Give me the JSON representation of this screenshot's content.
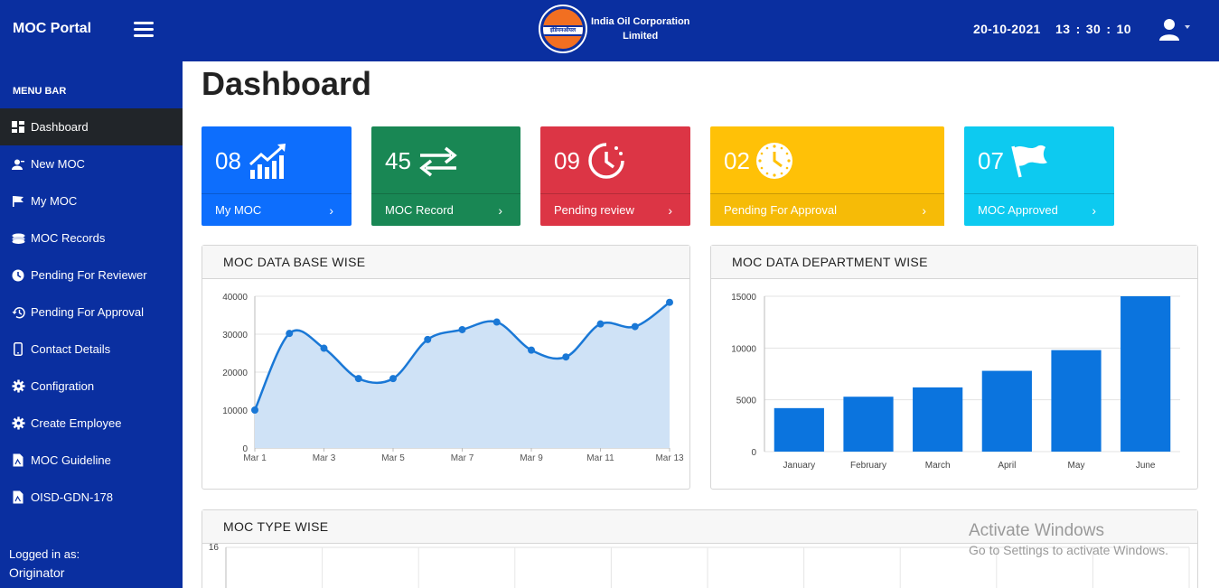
{
  "header": {
    "brand": "MOC Portal",
    "logo_hindi": "इंडियनऑयल",
    "company_line1": "India Oil Corporation",
    "company_line2": "Limited",
    "date": "20-10-2021",
    "clock": {
      "hh": "13",
      "mm": "30",
      "ss": "10"
    },
    "bg_color": "#0a2fa0"
  },
  "sidebar": {
    "title": "MENU BAR",
    "items": [
      {
        "label": "Dashboard",
        "icon": "dashboard-icon",
        "active": true
      },
      {
        "label": "New MOC",
        "icon": "user-add-icon"
      },
      {
        "label": "My MOC",
        "icon": "flag-icon"
      },
      {
        "label": "MOC Records",
        "icon": "stack-icon"
      },
      {
        "label": "Pending For Reviewer",
        "icon": "clock-icon"
      },
      {
        "label": "Pending For Approval",
        "icon": "history-icon"
      },
      {
        "label": "Contact Details",
        "icon": "phone-icon"
      },
      {
        "label": "Configration",
        "icon": "gear-icon"
      },
      {
        "label": "Create Employee",
        "icon": "gear-icon"
      },
      {
        "label": "MOC Guideline",
        "icon": "file-icon"
      },
      {
        "label": "OISD-GDN-178",
        "icon": "file-icon"
      }
    ],
    "logged_label": "Logged in as:",
    "logged_role": "Originator"
  },
  "main": {
    "title": "Dashboard"
  },
  "cards": [
    {
      "value": "08",
      "label": "My MOC",
      "icon": "trend-up-icon",
      "color": "#0d6efd"
    },
    {
      "value": "45",
      "label": "MOC Record",
      "icon": "exchange-arrows-icon",
      "color": "#198754"
    },
    {
      "value": "09",
      "label": "Pending review",
      "icon": "clock-rotate-icon",
      "color": "#dc3545"
    },
    {
      "value": "02",
      "label": "Pending For Approval",
      "icon": "clock-icon",
      "color": "#ffc107"
    },
    {
      "value": "07",
      "label": "MOC Approved",
      "icon": "flag-icon",
      "color": "#0dcaf0"
    }
  ],
  "panels": {
    "database": "MOC DATA BASE WISE",
    "department": "MOC DATA DEPARTMENT WISE",
    "type": "MOC TYPE WISE"
  },
  "chart_data": [
    {
      "type": "area",
      "title": "MOC DATA BASE WISE",
      "x": [
        "Mar 1",
        "Mar 2",
        "Mar 3",
        "Mar 4",
        "Mar 5",
        "Mar 6",
        "Mar 7",
        "Mar 8",
        "Mar 9",
        "Mar 10",
        "Mar 11",
        "Mar 12",
        "Mar 13"
      ],
      "tick_labels": [
        "Mar 1",
        "Mar 3",
        "Mar 5",
        "Mar 7",
        "Mar 9",
        "Mar 11",
        "Mar 13"
      ],
      "values": [
        10000,
        30200,
        26300,
        18300,
        18300,
        28600,
        31200,
        33200,
        25800,
        24000,
        32700,
        32000,
        38400
      ],
      "ylim": [
        0,
        40000
      ],
      "yticks": [
        0,
        10000,
        20000,
        30000,
        40000
      ],
      "color": "#1a78d6",
      "fill": "#cfe2f6"
    },
    {
      "type": "bar",
      "title": "MOC DATA DEPARTMENT WISE",
      "categories": [
        "January",
        "February",
        "March",
        "April",
        "May",
        "June"
      ],
      "values": [
        4200,
        5300,
        6200,
        7800,
        9800,
        15000
      ],
      "ylim": [
        0,
        15000
      ],
      "yticks": [
        0,
        5000,
        10000,
        15000
      ],
      "color": "#0b74de"
    },
    {
      "type": "bar",
      "title": "MOC TYPE WISE",
      "ylim_top_label": "16",
      "values": []
    }
  ],
  "watermark": {
    "line1": "Activate Windows",
    "line2": "Go to Settings to activate Windows."
  }
}
